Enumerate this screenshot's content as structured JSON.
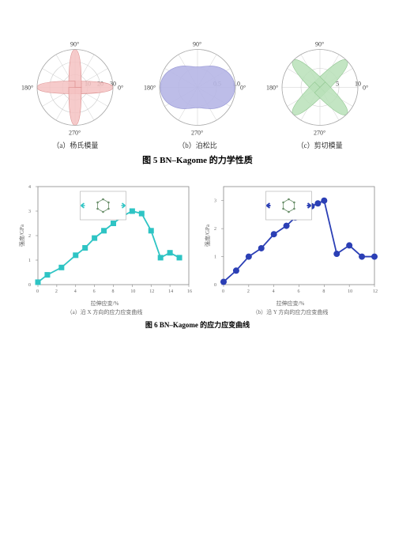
{
  "fig5": {
    "caption": "图 5    BN–Kagome 的力学性质",
    "angles_label": [
      "0°",
      "90°",
      "180°",
      "270°"
    ],
    "polar_font": 8,
    "caption_font": 11,
    "plots": [
      {
        "name": "youngs-modulus",
        "sublabel": "（a）杨氏模量",
        "color_fill": "#f4c2c2",
        "color_stroke": "#d98888",
        "rticks": [
          "10",
          "20",
          "30"
        ],
        "rmax": 30,
        "shape": "cross4",
        "lobe_r": 30,
        "lobe_w": 5
      },
      {
        "name": "poisson-ratio",
        "sublabel": "（b）泊松比",
        "color_fill": "#b6b6e6",
        "color_stroke": "#9a9ad6",
        "rticks": [
          "0.5",
          "1.0"
        ],
        "rmax": 1.0,
        "shape": "peanut",
        "big_r": 1.0,
        "waist": 0.55
      },
      {
        "name": "shear-modulus",
        "sublabel": "（c）剪切模量",
        "color_fill": "#b8e0b8",
        "color_stroke": "#8fc68f",
        "rticks": [
          "5",
          "10"
        ],
        "rmax": 10,
        "shape": "crossX",
        "lobe_r": 10,
        "lobe_w": 2
      }
    ]
  },
  "fig6": {
    "caption": "图 6   BN–Kagome 的应力应变曲线",
    "ylabel": "强度/GPa",
    "xlabel": "拉伸应变/%",
    "plots": [
      {
        "name": "stress-strain-x",
        "sublabel": "（a）沿 X 方向的应力应变曲线",
        "marker": "square",
        "color": "#2ec4c4",
        "xlim": [
          0,
          16
        ],
        "ylim": [
          0,
          4
        ],
        "xticks": [
          0,
          2,
          4,
          6,
          8,
          10,
          12,
          14,
          16
        ],
        "yticks": [
          0,
          1,
          2,
          3,
          4
        ],
        "data": [
          [
            0,
            0.1
          ],
          [
            1,
            0.4
          ],
          [
            2.5,
            0.7
          ],
          [
            4,
            1.2
          ],
          [
            5,
            1.5
          ],
          [
            6,
            1.9
          ],
          [
            7,
            2.2
          ],
          [
            8,
            2.5
          ],
          [
            9,
            2.8
          ],
          [
            10,
            3.0
          ],
          [
            11,
            2.9
          ],
          [
            12,
            2.2
          ],
          [
            13,
            1.1
          ],
          [
            14,
            1.3
          ],
          [
            15,
            1.1
          ]
        ]
      },
      {
        "name": "stress-strain-y",
        "sublabel": "（b）沿 Y 方向的应力应变曲线",
        "marker": "circle",
        "color": "#2b3fb5",
        "xlim": [
          0,
          12
        ],
        "ylim": [
          0,
          3.5
        ],
        "xticks": [
          0,
          2,
          4,
          6,
          8,
          10,
          12
        ],
        "yticks": [
          0,
          1,
          2,
          3
        ],
        "data": [
          [
            0,
            0.1
          ],
          [
            1,
            0.5
          ],
          [
            2,
            1.0
          ],
          [
            3,
            1.3
          ],
          [
            4,
            1.8
          ],
          [
            5,
            2.1
          ],
          [
            5.7,
            2.4
          ],
          [
            6.3,
            2.6
          ],
          [
            7,
            2.8
          ],
          [
            7.5,
            2.9
          ],
          [
            8,
            3.0
          ],
          [
            9,
            1.1
          ],
          [
            10,
            1.4
          ],
          [
            11,
            1.0
          ],
          [
            12,
            1.0
          ]
        ]
      }
    ]
  }
}
